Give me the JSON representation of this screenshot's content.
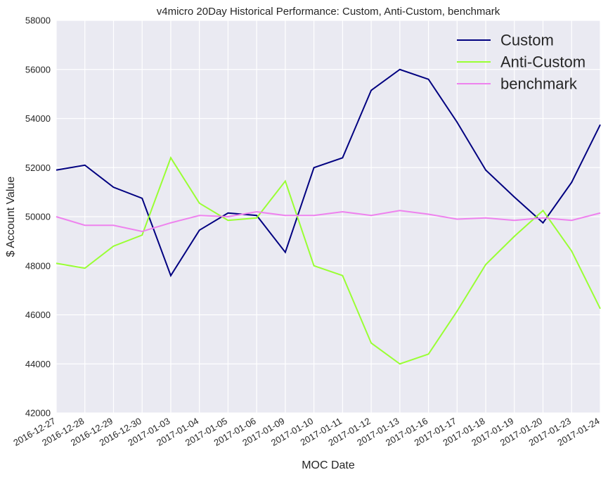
{
  "chart_data": {
    "type": "line",
    "title": "v4micro 20Day Historical Performance: Custom, Anti-Custom, benchmark",
    "xlabel": "MOC Date",
    "ylabel": "$ Account Value",
    "ylim": [
      42000,
      58000
    ],
    "yticks": [
      42000,
      44000,
      46000,
      48000,
      50000,
      52000,
      54000,
      56000,
      58000
    ],
    "grid": true,
    "legend_position": "top-right",
    "categories": [
      "2016-12-27",
      "2016-12-28",
      "2016-12-29",
      "2016-12-30",
      "2017-01-03",
      "2017-01-04",
      "2017-01-05",
      "2017-01-06",
      "2017-01-09",
      "2017-01-10",
      "2017-01-11",
      "2017-01-12",
      "2017-01-13",
      "2017-01-16",
      "2017-01-17",
      "2017-01-18",
      "2017-01-19",
      "2017-01-20",
      "2017-01-23",
      "2017-01-24"
    ],
    "series": [
      {
        "name": "Custom",
        "color": "#000080",
        "values": [
          51900,
          52100,
          51200,
          50750,
          47600,
          49450,
          50150,
          50050,
          48550,
          52000,
          52400,
          55150,
          56000,
          55600,
          53850,
          51900,
          50800,
          49750,
          51400,
          53750
        ]
      },
      {
        "name": "Anti-Custom",
        "color": "#99ff33",
        "values": [
          48100,
          47900,
          48800,
          49250,
          52400,
          50550,
          49850,
          49950,
          51450,
          48000,
          47600,
          44850,
          44000,
          44400,
          46150,
          48050,
          49200,
          50250,
          48600,
          46250
        ]
      },
      {
        "name": "benchmark",
        "color": "#ee82ee",
        "values": [
          50000,
          49650,
          49650,
          49400,
          49750,
          50050,
          50000,
          50200,
          50050,
          50050,
          50200,
          50050,
          50250,
          50100,
          49900,
          49950,
          49850,
          49950,
          49850,
          50150
        ]
      }
    ]
  }
}
